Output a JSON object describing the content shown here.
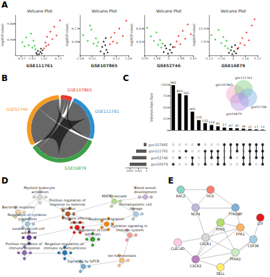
{
  "chart_data": [
    {
      "type": "scatter",
      "panel": "A",
      "title": "Volcano Plot",
      "ylabel": "-log10(P.value)",
      "plots": [
        {
          "xlabel": "GSE111761",
          "xlim": [
            -8.75,
            8.75
          ],
          "xticks": [
            -6.57,
            -2.81,
            1.61,
            6.75
          ],
          "ylim": [
            0,
            12.5
          ],
          "yticks": [
            4.94,
            9.88
          ],
          "series": [
            {
              "color": "#19c419",
              "values": [
                [
                  -6.2,
                  4.1
                ],
                [
                  -4.8,
                  5.6
                ],
                [
                  -3.9,
                  3.2
                ],
                [
                  -3.1,
                  6.8
                ],
                [
                  -2.6,
                  2.4
                ],
                [
                  -2.2,
                  4.6
                ],
                [
                  -1.8,
                  3.0
                ],
                [
                  -1.5,
                  1.9
                ],
                [
                  -5.4,
                  2.8
                ]
              ]
            },
            {
              "color": "#000000",
              "values": [
                [
                  -1.2,
                  0.8
                ],
                [
                  -0.6,
                  1.4
                ],
                [
                  -0.2,
                  0.4
                ],
                [
                  0.3,
                  1.1
                ],
                [
                  0.8,
                  0.6
                ],
                [
                  1.1,
                  1.6
                ],
                [
                  -0.9,
                  0.3
                ],
                [
                  0.5,
                  2.1
                ]
              ]
            },
            {
              "color": "#e8211c",
              "values": [
                [
                  1.6,
                  2.2
                ],
                [
                  2.1,
                  4.0
                ],
                [
                  2.7,
                  5.8
                ],
                [
                  3.2,
                  3.3
                ],
                [
                  3.9,
                  7.4
                ],
                [
                  4.6,
                  5.1
                ],
                [
                  5.3,
                  8.9
                ],
                [
                  6.1,
                  6.2
                ],
                [
                  7.4,
                  10.9
                ],
                [
                  2.4,
                  2.9
                ]
              ]
            }
          ]
        },
        {
          "xlabel": "GSE107865",
          "xlim": [
            -1.04,
            1.04
          ],
          "xticks": [
            -1.04,
            -0.52,
            0,
            0.52,
            1.04
          ],
          "ylim": [
            0,
            12.25
          ],
          "yticks": [
            4.08,
            8.17
          ],
          "series": [
            {
              "color": "#19c419",
              "values": [
                [
                  -0.9,
                  6.2
                ],
                [
                  -0.7,
                  4.4
                ],
                [
                  -0.55,
                  7.9
                ],
                [
                  -0.45,
                  3.6
                ],
                [
                  -0.35,
                  5.2
                ],
                [
                  -0.3,
                  2.9
                ],
                [
                  -0.25,
                  4.0
                ],
                [
                  -0.6,
                  9.1
                ]
              ]
            },
            {
              "color": "#000000",
              "values": [
                [
                  -0.15,
                  1.2
                ],
                [
                  -0.08,
                  2.6
                ],
                [
                  0,
                  0.5
                ],
                [
                  0.05,
                  3.1
                ],
                [
                  0.1,
                  1.7
                ],
                [
                  0.15,
                  0.9
                ],
                [
                  -0.02,
                  4.2
                ],
                [
                  0.07,
                  5.3
                ]
              ]
            },
            {
              "color": "#e8211c",
              "values": [
                [
                  0.25,
                  3.4
                ],
                [
                  0.3,
                  5.5
                ],
                [
                  0.38,
                  4.2
                ],
                [
                  0.45,
                  6.9
                ],
                [
                  0.55,
                  3.8
                ],
                [
                  0.65,
                  8.2
                ],
                [
                  0.8,
                  5.9
                ],
                [
                  0.95,
                  10.6
                ]
              ]
            }
          ]
        },
        {
          "xlabel": "GSE52746",
          "xlim": [
            -3.95,
            3.95
          ],
          "xticks": [
            -3.95,
            -1.98,
            0,
            1.98,
            3.95
          ],
          "ylim": [
            0,
            13.25
          ],
          "yticks": [
            4.42,
            8.83
          ],
          "series": [
            {
              "color": "#19c419",
              "values": [
                [
                  -3.5,
                  9.1
                ],
                [
                  -2.9,
                  6.3
                ],
                [
                  -2.4,
                  4.8
                ],
                [
                  -2.0,
                  7.6
                ],
                [
                  -1.7,
                  3.5
                ],
                [
                  -1.4,
                  5.1
                ],
                [
                  -1.2,
                  2.6
                ],
                [
                  -1.0,
                  3.9
                ]
              ]
            },
            {
              "color": "#000000",
              "values": [
                [
                  -0.8,
                  1.1
                ],
                [
                  -0.4,
                  2.3
                ],
                [
                  -0.1,
                  0.6
                ],
                [
                  0.2,
                  1.8
                ],
                [
                  0.5,
                  0.9
                ],
                [
                  0.7,
                  2.7
                ],
                [
                  -0.6,
                  3.2
                ],
                [
                  0.3,
                  3.6
                ]
              ]
            },
            {
              "color": "#e8211c",
              "values": [
                [
                  1.0,
                  2.8
                ],
                [
                  1.3,
                  4.6
                ],
                [
                  1.6,
                  6.4
                ],
                [
                  1.9,
                  3.7
                ],
                [
                  2.3,
                  8.1
                ],
                [
                  2.7,
                  5.5
                ],
                [
                  3.1,
                  10.2
                ],
                [
                  3.6,
                  7.0
                ]
              ]
            }
          ]
        },
        {
          "xlabel": "GSE16879",
          "xlim": [
            -5.12,
            5.12
          ],
          "xticks": [
            -5.12,
            -2.56,
            0,
            2.56,
            5.12
          ],
          "ylim": [
            0,
            23.9
          ],
          "yticks": [
            7.97,
            15.93
          ],
          "series": [
            {
              "color": "#19c419",
              "values": [
                [
                  -4.6,
                  12.1
                ],
                [
                  -3.8,
                  9.4
                ],
                [
                  -3.1,
                  15.2
                ],
                [
                  -2.5,
                  7.3
                ],
                [
                  -2.1,
                  11.0
                ],
                [
                  -1.7,
                  5.6
                ],
                [
                  -1.4,
                  8.8
                ],
                [
                  -1.1,
                  4.2
                ]
              ]
            },
            {
              "color": "#000000",
              "values": [
                [
                  -0.9,
                  1.5
                ],
                [
                  -0.5,
                  3.1
                ],
                [
                  -0.2,
                  0.7
                ],
                [
                  0.2,
                  2.4
                ],
                [
                  0.6,
                  1.2
                ],
                [
                  0.9,
                  3.9
                ],
                [
                  -0.3,
                  5.0
                ],
                [
                  0.4,
                  6.1
                ]
              ]
            },
            {
              "color": "#e8211c",
              "values": [
                [
                  1.1,
                  4.5
                ],
                [
                  1.5,
                  7.2
                ],
                [
                  1.9,
                  10.3
                ],
                [
                  2.4,
                  6.1
                ],
                [
                  2.8,
                  13.6
                ],
                [
                  3.3,
                  9.0
                ],
                [
                  3.9,
                  17.8
                ],
                [
                  4.5,
                  21.5
                ]
              ]
            }
          ]
        }
      ]
    },
    {
      "type": "chord",
      "panel": "B",
      "categories": [
        "GSE107865",
        "GSE111761",
        "GSE16879",
        "GSE52746"
      ],
      "colors": [
        "#e8372c",
        "#2e8fd0",
        "#3aa146",
        "#f59a23"
      ],
      "links": [
        {
          "source": "GSE16879",
          "target": "GSE52746",
          "value": 500,
          "color": "#7b4fc9"
        },
        {
          "source": "GSE16879",
          "target": "GSE111761",
          "value": 300,
          "color": "#7b4fc9"
        },
        {
          "source": "GSE52746",
          "target": "GSE111761",
          "value": 250,
          "color": "#8ec3e6"
        },
        {
          "source": "GSE107865",
          "target": "GSE16879",
          "value": 60,
          "color": "#8ec3e6"
        },
        {
          "source": "GSE107865",
          "target": "GSE52746",
          "value": 50,
          "color": "#7b4fc9"
        },
        {
          "source": "GSE107865",
          "target": "GSE111761",
          "value": 30,
          "color": "#8ec3e6"
        }
      ]
    },
    {
      "type": "upset",
      "panel": "C",
      "ylabel": "Intersection Size",
      "sets": [
        "gse107865",
        "gse111761",
        "gse52746",
        "gse16879"
      ],
      "set_sizes": [
        330,
        1240,
        1720,
        2010
      ],
      "set_size_xlim": [
        0,
        2500
      ],
      "set_size_xticks": [
        0,
        1000,
        2000
      ],
      "ylim": [
        0,
        1000
      ],
      "yticks": [
        0,
        250,
        500,
        750,
        1000
      ],
      "values": [
        985,
        803,
        765,
        405,
        220,
        155,
        114,
        85,
        57,
        47,
        41,
        34,
        22,
        17,
        11
      ],
      "intersections": [
        [
          3
        ],
        [
          2
        ],
        [
          1
        ],
        [
          2,
          3
        ],
        [
          0
        ],
        [
          1,
          3
        ],
        [
          1,
          2
        ],
        [
          1,
          2,
          3
        ],
        [
          0,
          3
        ],
        [
          0,
          2
        ],
        [
          0,
          1
        ],
        [
          0,
          2,
          3
        ],
        [
          0,
          1,
          3
        ],
        [
          0,
          1,
          2
        ],
        [
          0,
          1,
          2,
          3
        ]
      ],
      "color": "#000000",
      "data_labels": true
    },
    {
      "type": "venn",
      "sets": [
        "gse107865",
        "gse111761",
        "gse52746",
        "gse16879"
      ],
      "colors": [
        "#f4a6c6",
        "#7fd17f",
        "#7fb2e6",
        "#b794e0"
      ]
    },
    {
      "type": "graph",
      "panel": "D",
      "clusters": [
        {
          "label": "Myeloid leukocyte activation",
          "color": "#d9d9d9",
          "size": 5
        },
        {
          "label": "Bacterial response",
          "color": "#f2d0a4",
          "size": 4
        },
        {
          "label": "Regulation of cytokine production",
          "color": "#9ecae1",
          "size": 6
        },
        {
          "label": "Positive regulation of response to external stimulus",
          "color": "#b15928",
          "size": 6
        },
        {
          "label": "Immune effector process",
          "color": "#e31a1c",
          "size": 7
        },
        {
          "label": "Leukocyte cell-cell adhesion",
          "color": "#6a3d9a",
          "size": 5
        },
        {
          "label": "Positive regulation of immune response",
          "color": "#8c6bb1",
          "size": 5
        },
        {
          "label": "Leukocyte migration",
          "color": "#ff7f00",
          "size": 6
        },
        {
          "label": "Regulation of cell adhesion",
          "color": "#33a02c",
          "size": 5
        },
        {
          "label": "Cytokine signaling in immune system",
          "color": "#fb9a99",
          "size": 4
        },
        {
          "label": "Negative regulation of immune system process",
          "color": "#1f78b4",
          "size": 5
        },
        {
          "label": "Signaling by GPCR",
          "color": "#6baed6",
          "size": 4
        },
        {
          "label": "Ion homeostasis",
          "color": "#fdbf6f",
          "size": 4
        },
        {
          "label": "Hematopoietic cell lineage",
          "color": "#a6cee3",
          "size": 4
        },
        {
          "label": "MAPK cascade",
          "color": "#b2df8a",
          "size": 4
        },
        {
          "label": "Blood vessel development",
          "color": "#cab2d6",
          "size": 3
        }
      ],
      "links": [
        [
          0,
          1
        ],
        [
          0,
          3
        ],
        [
          1,
          2
        ],
        [
          2,
          3
        ],
        [
          2,
          5
        ],
        [
          3,
          4
        ],
        [
          3,
          7
        ],
        [
          4,
          5
        ],
        [
          4,
          7
        ],
        [
          4,
          8
        ],
        [
          4,
          10
        ],
        [
          5,
          6
        ],
        [
          6,
          10
        ],
        [
          7,
          8
        ],
        [
          7,
          9
        ],
        [
          7,
          13
        ],
        [
          8,
          10
        ],
        [
          9,
          12
        ],
        [
          10,
          11
        ],
        [
          11,
          12
        ],
        [
          13,
          14
        ],
        [
          14,
          15
        ],
        [
          14,
          3
        ],
        [
          0,
          2
        ]
      ]
    },
    {
      "type": "graph",
      "panel": "E",
      "nodes": [
        "RAC2",
        "HCK",
        "NCF4",
        "TYROBP",
        "FPR1",
        "FPR2",
        "CLEC4D",
        "CXCR1",
        "CXCR2",
        "FFAR2",
        "SELL",
        "CSF3R",
        "LTF"
      ],
      "colors": [
        "#8dd3c7",
        "#fb8072",
        "#bebada",
        "#80b1d3",
        "#fdb462",
        "#b3de69",
        "#fccde5",
        "#d9d9d9",
        "#bc80bd",
        "#ccebc5",
        "#ffed6f",
        "#a6cee3",
        "#e31a1c"
      ],
      "links": [
        [
          0,
          1
        ],
        [
          0,
          2
        ],
        [
          1,
          2
        ],
        [
          1,
          3
        ],
        [
          2,
          3
        ],
        [
          2,
          7
        ],
        [
          3,
          4
        ],
        [
          3,
          5
        ],
        [
          4,
          5
        ],
        [
          4,
          7
        ],
        [
          4,
          8
        ],
        [
          5,
          7
        ],
        [
          5,
          8
        ],
        [
          6,
          7
        ],
        [
          6,
          8
        ],
        [
          7,
          8
        ],
        [
          7,
          9
        ],
        [
          8,
          9
        ],
        [
          8,
          10
        ],
        [
          9,
          10
        ],
        [
          9,
          11
        ],
        [
          10,
          11
        ],
        [
          4,
          11
        ],
        [
          5,
          9
        ],
        [
          11,
          12
        ]
      ]
    }
  ]
}
